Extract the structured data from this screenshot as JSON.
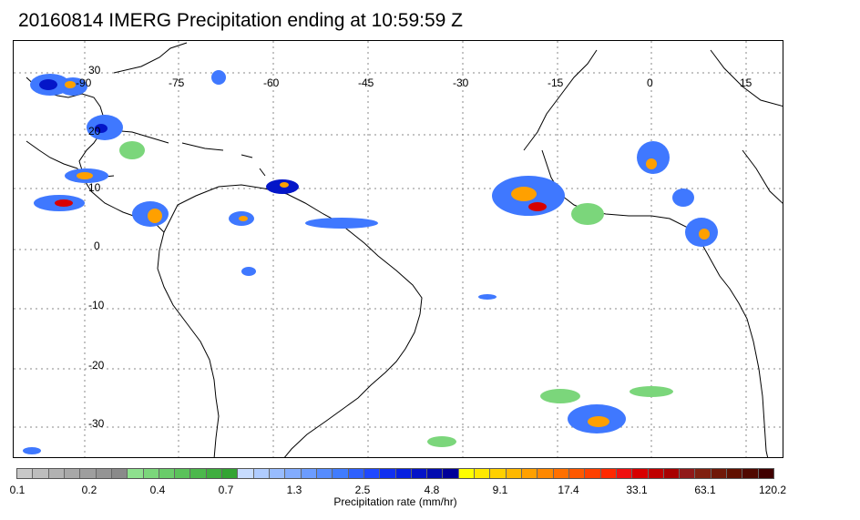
{
  "title": "20160814 IMERG Precipitation ending at 10:59:59 Z",
  "map": {
    "longitude_labels": [
      "-90",
      "-75",
      "-60",
      "-45",
      "-30",
      "-15",
      "0",
      "15"
    ],
    "latitude_labels": [
      "30",
      "20",
      "10",
      "0",
      "-10",
      "-20",
      "-30"
    ],
    "graticule_style": "dotted",
    "coastline_color": "#000000"
  },
  "colorbar": {
    "tick_labels": [
      "0.1",
      "0.2",
      "0.4",
      "0.7",
      "1.3",
      "2.5",
      "4.8",
      "9.1",
      "17.4",
      "33.1",
      "63.1",
      "120.2"
    ],
    "label": "Precipitation rate (mm/hr)",
    "colors": [
      "#c8c8c8",
      "#bdbdbd",
      "#b2b2b2",
      "#a8a8a8",
      "#9e9e9e",
      "#949494",
      "#8a8a8a",
      "#8ee08e",
      "#7bd67b",
      "#6acc6a",
      "#5ac25a",
      "#4cb84c",
      "#3fae3f",
      "#33a433",
      "#c7dcff",
      "#b0ccff",
      "#98bcff",
      "#82acff",
      "#6c9cff",
      "#568cff",
      "#407cff",
      "#2e60ff",
      "#1f48ff",
      "#1030f0",
      "#0620e0",
      "#0414c8",
      "#020cb0",
      "#000098",
      "#ffff00",
      "#ffe800",
      "#ffd000",
      "#ffb800",
      "#ffa000",
      "#ff8800",
      "#ff7000",
      "#ff5800",
      "#ff4000",
      "#ff2800",
      "#f01010",
      "#d80000",
      "#c00000",
      "#a80000",
      "#901818",
      "#802010",
      "#701808",
      "#601000",
      "#500800",
      "#400000"
    ]
  },
  "precip_legend_colors": {
    "light": "#7bd67b",
    "moderate": "#3f78ff",
    "heavy": "#0416c8",
    "intense": "#ffa000",
    "extreme": "#d80000"
  }
}
